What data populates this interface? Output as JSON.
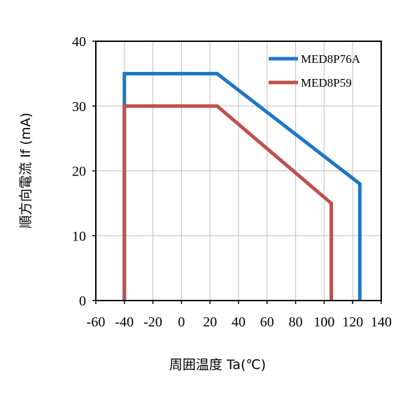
{
  "chart_data": {
    "type": "line",
    "title": "",
    "xlabel": "周囲温度 Ta(℃)",
    "ylabel": "順方向電流  If (mA)",
    "xlim": [
      -60,
      140
    ],
    "ylim": [
      0,
      40
    ],
    "x_ticks": [
      -60,
      -40,
      -20,
      0,
      20,
      40,
      60,
      80,
      100,
      120,
      140
    ],
    "y_ticks": [
      0,
      10,
      20,
      30,
      40
    ],
    "grid": "vertical",
    "legend_position": "top-right",
    "series": [
      {
        "name": "MED8P76A",
        "color": "#1f77c4",
        "x": [
          -40,
          -40,
          25,
          125,
          125
        ],
        "y": [
          0,
          35,
          35,
          18,
          0
        ]
      },
      {
        "name": "MED8P59",
        "color": "#c0504d",
        "x": [
          -40,
          -40,
          25,
          105,
          105
        ],
        "y": [
          0,
          30,
          30,
          15,
          0
        ]
      }
    ]
  }
}
